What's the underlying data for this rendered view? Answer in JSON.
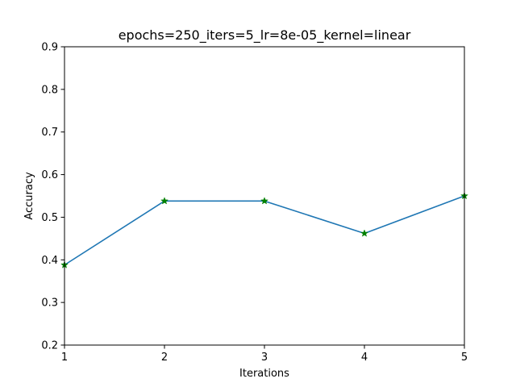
{
  "chart_data": {
    "type": "line",
    "title": "epochs=250_iters=5_lr=8e-05_kernel=linear",
    "xlabel": "Iterations",
    "ylabel": "Accuracy",
    "x": [
      1,
      2,
      3,
      4,
      5
    ],
    "series": [
      {
        "values": [
          0.388,
          0.538,
          0.538,
          0.462,
          0.55
        ],
        "color": "#1f77b4",
        "marker": "star",
        "marker_color": "#008000"
      }
    ],
    "xlim": [
      1,
      5
    ],
    "ylim": [
      0.2,
      0.9
    ],
    "xticks": [
      "1",
      "2",
      "3",
      "4",
      "5"
    ],
    "yticks": [
      "0.2",
      "0.3",
      "0.4",
      "0.5",
      "0.6",
      "0.7",
      "0.8",
      "0.9"
    ],
    "grid": false,
    "legend": "none"
  }
}
